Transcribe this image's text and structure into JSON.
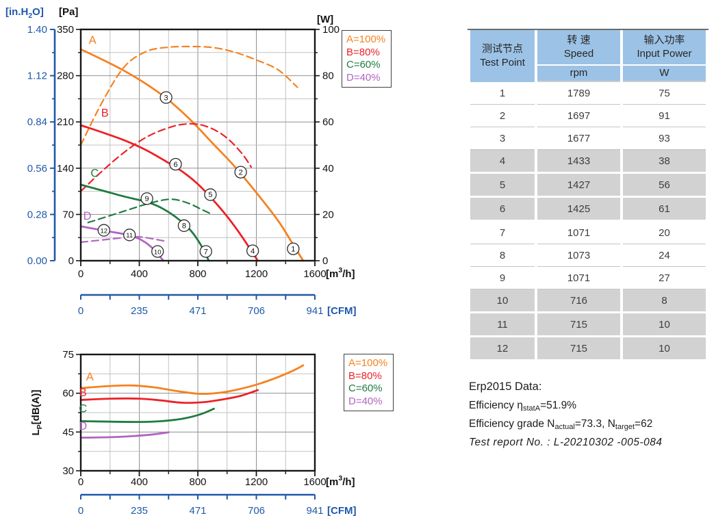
{
  "colors": {
    "orange": "#F58220",
    "red": "#EB2227",
    "green": "#1E7B3F",
    "purple": "#B164C2",
    "axis_blue": "#1F58A9",
    "frame": "#161616",
    "grid_major": "#8f8f8f",
    "grid_minor": "#c2c2c2",
    "table_header_bg": "#9CC3E6",
    "table_row_gray": "#D2D2D2"
  },
  "legend": {
    "items": [
      {
        "label": "A=100%",
        "color": "#F58220"
      },
      {
        "label": "B=80%",
        "color": "#EB2227"
      },
      {
        "label": "C=60%",
        "color": "#1E7B3F"
      },
      {
        "label": "D=40%",
        "color": "#B164C2"
      }
    ]
  },
  "chart_data": [
    {
      "id": "fan-performance",
      "type": "line",
      "x": {
        "min": 0,
        "max": 1600,
        "ticks": [
          0,
          400,
          800,
          1200,
          1600
        ],
        "minor_ticks": [
          200,
          600,
          1000,
          1400
        ],
        "unit_parts": {
          "pre": "[m",
          "sup": "3",
          "post": "/h]"
        }
      },
      "y_pa": {
        "title": "[Pa]",
        "min": 0,
        "max": 350,
        "ticks": [
          350,
          280,
          210,
          140,
          70,
          0
        ],
        "minor_step": 35
      },
      "y_inh2o": {
        "title_parts": {
          "pre": "[in.H",
          "sub": "2",
          "post": "O]"
        },
        "ticks": [
          "1.40",
          "1.12",
          "0.84",
          "0.56",
          "0.28",
          "0.00"
        ]
      },
      "y_w": {
        "title": "[W]",
        "min": 0,
        "max": 100,
        "ticks": [
          100,
          80,
          60,
          40,
          20,
          0
        ],
        "pa_per_w": 3.5
      },
      "cfm": {
        "ticks": [
          "0",
          "235",
          "471",
          "706",
          "941"
        ],
        "label": "[CFM]"
      },
      "series": [
        {
          "name": "A-pressure",
          "color": "#F58220",
          "dash": false,
          "unit": "Pa",
          "points": [
            [
              0,
              320
            ],
            [
              150,
              304
            ],
            [
              300,
              287
            ],
            [
              450,
              267
            ],
            [
              600,
              243
            ],
            [
              750,
              213
            ],
            [
              900,
              178
            ],
            [
              1050,
              143
            ],
            [
              1200,
              103
            ],
            [
              1350,
              60
            ],
            [
              1450,
              25
            ],
            [
              1520,
              0
            ]
          ]
        },
        {
          "name": "A-power",
          "color": "#F58220",
          "dash": true,
          "unit": "W",
          "points": [
            [
              0,
              50
            ],
            [
              150,
              69
            ],
            [
              300,
              84
            ],
            [
              450,
              90.5
            ],
            [
              600,
              92.3
            ],
            [
              750,
              92.6
            ],
            [
              900,
              92.2
            ],
            [
              1050,
              90.2
            ],
            [
              1200,
              86.8
            ],
            [
              1350,
              82.5
            ],
            [
              1480,
              75
            ]
          ]
        },
        {
          "name": "B-pressure",
          "color": "#EB2227",
          "dash": false,
          "unit": "Pa",
          "points": [
            [
              0,
              205
            ],
            [
              150,
              194
            ],
            [
              300,
              182
            ],
            [
              450,
              167
            ],
            [
              600,
              148
            ],
            [
              700,
              134
            ],
            [
              800,
              116
            ],
            [
              900,
              93
            ],
            [
              1000,
              67
            ],
            [
              1100,
              37
            ],
            [
              1210,
              0
            ]
          ]
        },
        {
          "name": "B-power",
          "color": "#EB2227",
          "dash": true,
          "unit": "W",
          "points": [
            [
              0,
              30
            ],
            [
              150,
              39
            ],
            [
              300,
              47
            ],
            [
              450,
              53.5
            ],
            [
              600,
              57.5
            ],
            [
              700,
              59
            ],
            [
              800,
              59
            ],
            [
              900,
              57
            ],
            [
              1000,
              53
            ],
            [
              1100,
              46.5
            ],
            [
              1165,
              40.5
            ]
          ]
        },
        {
          "name": "C-pressure",
          "color": "#1E7B3F",
          "dash": false,
          "unit": "Pa",
          "points": [
            [
              0,
              115
            ],
            [
              150,
              106
            ],
            [
              300,
              97
            ],
            [
              450,
              89
            ],
            [
              550,
              80
            ],
            [
              650,
              66
            ],
            [
              750,
              46
            ],
            [
              820,
              24
            ],
            [
              875,
              0
            ]
          ]
        },
        {
          "name": "C-power",
          "color": "#1E7B3F",
          "dash": true,
          "unit": "W",
          "points": [
            [
              50,
              16.5
            ],
            [
              150,
              18.5
            ],
            [
              300,
              21.5
            ],
            [
              450,
              24.5
            ],
            [
              570,
              26.3
            ],
            [
              650,
              26.4
            ],
            [
              750,
              24.5
            ],
            [
              830,
              22
            ],
            [
              900,
              20
            ]
          ]
        },
        {
          "name": "D-pressure",
          "color": "#B164C2",
          "dash": false,
          "unit": "Pa",
          "points": [
            [
              0,
              52
            ],
            [
              100,
              48
            ],
            [
              200,
              44
            ],
            [
              300,
              40
            ],
            [
              400,
              33
            ],
            [
              480,
              21
            ],
            [
              565,
              0
            ]
          ]
        },
        {
          "name": "D-power",
          "color": "#B164C2",
          "dash": true,
          "unit": "W",
          "points": [
            [
              0,
              8
            ],
            [
              150,
              9
            ],
            [
              300,
              10
            ],
            [
              400,
              10.3
            ],
            [
              480,
              9.6
            ],
            [
              590,
              8.3
            ]
          ]
        }
      ],
      "curve_labels": [
        {
          "text": "A",
          "color": "#F58220",
          "x": 80,
          "y": 328
        },
        {
          "text": "B",
          "color": "#EB2227",
          "x": 165,
          "y": 218
        },
        {
          "text": "C",
          "color": "#1E7B3F",
          "x": 95,
          "y": 127
        },
        {
          "text": "D",
          "color": "#B164C2",
          "x": 45,
          "y": 62
        }
      ],
      "markers": [
        {
          "n": "1",
          "x": 1452,
          "y": 18
        },
        {
          "n": "2",
          "x": 1093,
          "y": 134
        },
        {
          "n": "3",
          "x": 583,
          "y": 247
        },
        {
          "n": "4",
          "x": 1175,
          "y": 15
        },
        {
          "n": "5",
          "x": 886,
          "y": 100
        },
        {
          "n": "6",
          "x": 648,
          "y": 146
        },
        {
          "n": "7",
          "x": 855,
          "y": 14
        },
        {
          "n": "8",
          "x": 706,
          "y": 53
        },
        {
          "n": "9",
          "x": 452,
          "y": 94
        },
        {
          "n": "10",
          "x": 525,
          "y": 14
        },
        {
          "n": "11",
          "x": 333,
          "y": 39
        },
        {
          "n": "12",
          "x": 158,
          "y": 46
        }
      ]
    },
    {
      "id": "noise-level",
      "type": "line",
      "x": {
        "min": 0,
        "max": 1600,
        "ticks": [
          0,
          400,
          800,
          1200,
          1600
        ],
        "minor_ticks": [
          200,
          600,
          1000,
          1400
        ],
        "unit_parts": {
          "pre": "[m",
          "sup": "3",
          "post": "/h]"
        }
      },
      "y": {
        "label_parts": {
          "main": "L",
          "sub": "P",
          "rest": "[dB(A)]"
        },
        "min": 30,
        "max": 75,
        "ticks": [
          75,
          60,
          45,
          30
        ],
        "grid_major": [
          60,
          45
        ],
        "grid_minor": [
          67.5,
          52.5,
          37.5
        ]
      },
      "cfm": {
        "ticks": [
          "0",
          "235",
          "471",
          "706",
          "941"
        ],
        "label": "[CFM]"
      },
      "series": [
        {
          "name": "A-noise",
          "color": "#F58220",
          "dash": false,
          "points": [
            [
              0,
              62
            ],
            [
              200,
              62.8
            ],
            [
              350,
              63
            ],
            [
              500,
              62.3
            ],
            [
              650,
              60.9
            ],
            [
              800,
              59.8
            ],
            [
              900,
              59.9
            ],
            [
              1000,
              60.6
            ],
            [
              1150,
              62.5
            ],
            [
              1300,
              65.2
            ],
            [
              1450,
              68.7
            ],
            [
              1520,
              70.8
            ]
          ]
        },
        {
          "name": "B-noise",
          "color": "#EB2227",
          "dash": false,
          "points": [
            [
              0,
              57.4
            ],
            [
              200,
              57.9
            ],
            [
              400,
              57.9
            ],
            [
              550,
              57.2
            ],
            [
              700,
              56.3
            ],
            [
              850,
              56.6
            ],
            [
              1000,
              57.9
            ],
            [
              1100,
              59.1
            ],
            [
              1210,
              61.2
            ]
          ]
        },
        {
          "name": "C-noise",
          "color": "#1E7B3F",
          "dash": false,
          "points": [
            [
              0,
              49.2
            ],
            [
              200,
              49
            ],
            [
              400,
              48.9
            ],
            [
              550,
              49.2
            ],
            [
              700,
              50.2
            ],
            [
              820,
              51.9
            ],
            [
              910,
              54
            ]
          ]
        },
        {
          "name": "D-noise",
          "color": "#B164C2",
          "dash": false,
          "points": [
            [
              0,
              42.8
            ],
            [
              200,
              43
            ],
            [
              350,
              43.4
            ],
            [
              500,
              44.1
            ],
            [
              600,
              44.9
            ]
          ]
        }
      ],
      "curve_labels": [
        {
          "text": "A",
          "color": "#F58220",
          "x": 62,
          "y": 64.9
        },
        {
          "text": "B",
          "color": "#EB2227",
          "x": 15,
          "y": 58.9
        },
        {
          "text": "C",
          "color": "#1E7B3F",
          "x": 15,
          "y": 52.6
        },
        {
          "text": "D",
          "color": "#B164C2",
          "x": 15,
          "y": 45.9
        }
      ]
    }
  ],
  "table": {
    "header": {
      "col1": {
        "zh": "测试节点",
        "en": "Test Point"
      },
      "col2": {
        "zh": "转 速",
        "en": "Speed",
        "unit": "rpm"
      },
      "col3": {
        "zh": "输入功率",
        "en": "Input Power",
        "unit": "W"
      }
    },
    "rows": [
      {
        "point": "1",
        "speed": "1789",
        "power": "75"
      },
      {
        "point": "2",
        "speed": "1697",
        "power": "91"
      },
      {
        "point": "3",
        "speed": "1677",
        "power": "93"
      },
      {
        "point": "4",
        "speed": "1433",
        "power": "38"
      },
      {
        "point": "5",
        "speed": "1427",
        "power": "56"
      },
      {
        "point": "6",
        "speed": "1425",
        "power": "61"
      },
      {
        "point": "7",
        "speed": "1071",
        "power": "20"
      },
      {
        "point": "8",
        "speed": "1073",
        "power": "24"
      },
      {
        "point": "9",
        "speed": "1071",
        "power": "27"
      },
      {
        "point": "10",
        "speed": "716",
        "power": "8"
      },
      {
        "point": "11",
        "speed": "715",
        "power": "10"
      },
      {
        "point": "12",
        "speed": "715",
        "power": "10"
      }
    ]
  },
  "erp": {
    "title": "Erp2015  Data:",
    "line_efficiency": [
      {
        "t": "Efficiency η"
      },
      {
        "t": "statA",
        "sub": true
      },
      {
        "t": "=51.9%"
      }
    ],
    "line_grade": [
      {
        "t": "Efficiency grade N"
      },
      {
        "t": "actual",
        "sub": true
      },
      {
        "t": "=73.3, N"
      },
      {
        "t": "target",
        "sub": true
      },
      {
        "t": "=62"
      }
    ],
    "report": "Test report No. : L-20210302 -005-084"
  }
}
